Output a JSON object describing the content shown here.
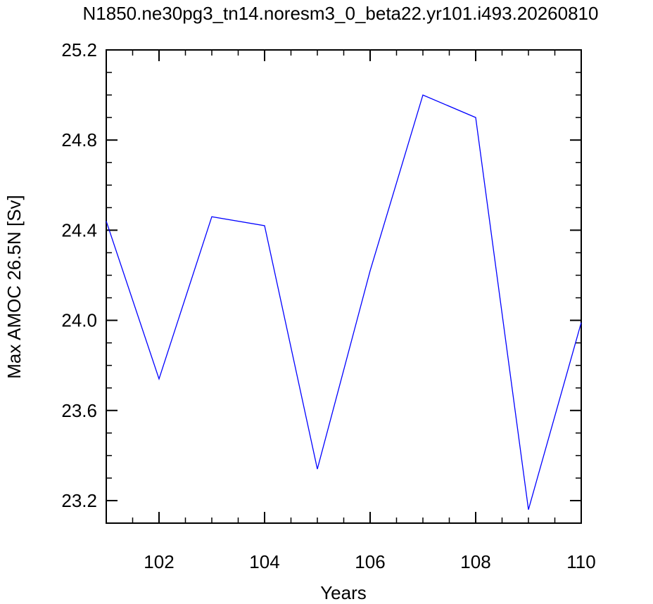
{
  "chart_data": {
    "type": "line",
    "title": "N1850.ne30pg3_tn14.noresm3_0_beta22.yr101.i493.20260810",
    "xlabel": "Years",
    "ylabel": "Max AMOC 26.5N [Sv]",
    "xlim": [
      101,
      110
    ],
    "ylim": [
      23.1,
      25.2
    ],
    "x_ticks": [
      102,
      104,
      106,
      108,
      110
    ],
    "x_tick_labels": [
      "102",
      "104",
      "106",
      "108",
      "110"
    ],
    "y_ticks": [
      23.2,
      23.6,
      24.0,
      24.4,
      24.8,
      25.2
    ],
    "y_tick_labels": [
      "23.2",
      "23.6",
      "24.0",
      "24.4",
      "24.8",
      "25.2"
    ],
    "grid": false,
    "line_color": "#0000ff",
    "series": [
      {
        "x": [
          101,
          102,
          103,
          104,
          105,
          106,
          107,
          108,
          109,
          110
        ],
        "values": [
          24.44,
          23.74,
          24.46,
          24.42,
          23.34,
          24.22,
          25.0,
          24.9,
          23.16,
          23.99
        ]
      }
    ]
  }
}
